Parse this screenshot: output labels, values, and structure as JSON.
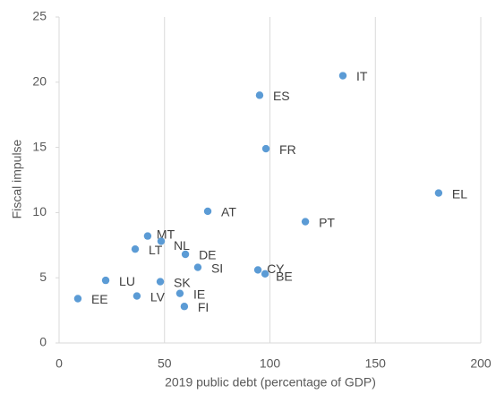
{
  "chart_data": {
    "type": "scatter",
    "x_label": "2019 public debt (percentage of GDP)",
    "y_label": "Fiscal impulse",
    "color": "#5b9bd5",
    "xlim": [
      0,
      200
    ],
    "xticks": [
      0,
      50,
      100,
      150,
      200
    ],
    "ylim": [
      0,
      25
    ],
    "yticks": [
      0,
      5,
      10,
      15,
      20,
      25
    ],
    "grid": true,
    "points": [
      {
        "label": "IT",
        "x": 134.6,
        "y": 20.5
      },
      {
        "label": "ES",
        "x": 95.1,
        "y": 19.0
      },
      {
        "label": "FR",
        "x": 98.1,
        "y": 14.9
      },
      {
        "label": "EL",
        "x": 180,
        "y": 11.5
      },
      {
        "label": "AT",
        "x": 70.5,
        "y": 10.1
      },
      {
        "label": "PT",
        "x": 116.8,
        "y": 9.3
      },
      {
        "label": "MT",
        "x": 42.0,
        "y": 8.2
      },
      {
        "label": "NL",
        "x": 48.4,
        "y": 7.8
      },
      {
        "label": "LT",
        "x": 36.1,
        "y": 7.2
      },
      {
        "label": "DE",
        "x": 59.9,
        "y": 6.8
      },
      {
        "label": "SI",
        "x": 65.8,
        "y": 5.8
      },
      {
        "label": "CY",
        "x": 94.3,
        "y": 5.6
      },
      {
        "label": "BE",
        "x": 97.7,
        "y": 5.3
      },
      {
        "label": "LU",
        "x": 22.1,
        "y": 4.8
      },
      {
        "label": "SK",
        "x": 48.0,
        "y": 4.7
      },
      {
        "label": "LV",
        "x": 36.9,
        "y": 3.6
      },
      {
        "label": "IE",
        "x": 57.3,
        "y": 3.8
      },
      {
        "label": "EE",
        "x": 8.9,
        "y": 3.4
      },
      {
        "label": "FI",
        "x": 59.4,
        "y": 2.8
      }
    ]
  }
}
